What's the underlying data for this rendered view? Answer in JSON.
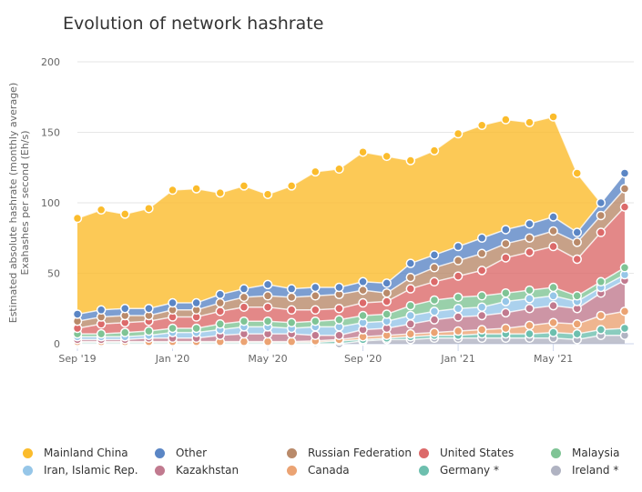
{
  "chart_data": {
    "type": "area",
    "stacked": true,
    "title": "Evolution of network hashrate",
    "ylabel": "Estimated absolute hashrate (monthly average)",
    "ylabel2": "Exahashes per second (Eh/s)",
    "ylim": [
      0,
      200
    ],
    "yticks": [
      0,
      50,
      100,
      150,
      200
    ],
    "grid": true,
    "legend_position": "bottom",
    "x": [
      "2019-09",
      "2019-10",
      "2019-11",
      "2019-12",
      "2020-01",
      "2020-02",
      "2020-03",
      "2020-04",
      "2020-05",
      "2020-06",
      "2020-07",
      "2020-08",
      "2020-09",
      "2020-10",
      "2020-11",
      "2020-12",
      "2021-01",
      "2021-02",
      "2021-03",
      "2021-04",
      "2021-05",
      "2021-06",
      "2021-07",
      "2021-08"
    ],
    "xtick_labels": [
      {
        "label": "Sep '19",
        "index": 0
      },
      {
        "label": "Jan '20",
        "index": 4
      },
      {
        "label": "May '20",
        "index": 8
      },
      {
        "label": "Sep '20",
        "index": 12
      },
      {
        "label": "Jan '21",
        "index": 16
      },
      {
        "label": "May '21",
        "index": 20
      }
    ],
    "series": [
      {
        "name": "Ireland *",
        "color": "#b0b3c2",
        "values": [
          0,
          0,
          0,
          0,
          0,
          0,
          0,
          0,
          0,
          0,
          0,
          0,
          2,
          3,
          3,
          4,
          4,
          4,
          4,
          4,
          4,
          3,
          6,
          6
        ]
      },
      {
        "name": "Germany *",
        "color": "#6dbfae",
        "values": [
          1,
          1,
          1,
          1,
          1,
          1,
          1,
          1,
          1,
          1,
          1,
          2,
          1,
          1,
          2,
          2,
          2,
          3,
          3,
          3,
          4,
          4,
          4,
          5
        ]
      },
      {
        "name": "Canada",
        "color": "#eba373",
        "values": [
          0.5,
          0.5,
          0.5,
          0.5,
          0.5,
          0.5,
          0.5,
          0.5,
          0.5,
          0.5,
          1,
          1,
          2,
          2,
          2,
          2,
          3,
          3,
          4,
          6,
          7,
          7,
          10,
          12
        ]
      },
      {
        "name": "Kazakhstan",
        "color": "#c17a8f",
        "values": [
          1.5,
          1.5,
          1.5,
          2.5,
          2.5,
          2.5,
          4.5,
          5.5,
          5.5,
          5.5,
          4,
          3,
          5,
          5,
          7,
          9,
          10,
          10,
          11,
          12,
          12,
          11,
          16,
          22
        ]
      },
      {
        "name": "Iran, Islamic Rep.",
        "color": "#96c6e8",
        "values": [
          2,
          2,
          2,
          2,
          4,
          4,
          4,
          5,
          5,
          4,
          6,
          6,
          5,
          5,
          6,
          6,
          6,
          6,
          8,
          7,
          7,
          5,
          4,
          4
        ]
      },
      {
        "name": "Malaysia",
        "color": "#7fc495",
        "values": [
          2,
          2,
          3,
          3,
          3,
          3,
          4,
          4,
          4,
          4,
          4,
          5,
          5,
          5,
          7,
          8,
          8,
          8,
          6,
          6,
          6,
          4,
          4,
          5
        ]
      },
      {
        "name": "United States",
        "color": "#dc6a6a",
        "values": [
          4,
          7,
          7,
          7,
          8,
          8,
          9,
          10,
          10,
          9,
          8,
          8,
          9,
          9,
          12,
          13,
          15,
          18,
          25,
          27,
          29,
          26,
          35,
          43
        ]
      },
      {
        "name": "Russian Federation",
        "color": "#b98a6a",
        "values": [
          5,
          5,
          5,
          4,
          5,
          5,
          6,
          7,
          8,
          9,
          10,
          10,
          9,
          6,
          8,
          10,
          11,
          12,
          10,
          10,
          11,
          12,
          12,
          13
        ]
      },
      {
        "name": "Other",
        "color": "#5b86c5",
        "values": [
          5,
          5,
          5,
          5,
          5,
          5,
          6,
          6,
          8,
          6,
          6,
          5,
          6,
          7,
          10,
          9,
          10,
          11,
          10,
          10,
          10,
          7,
          9,
          11
        ]
      },
      {
        "name": "Mainland China",
        "color": "#fbbc2c",
        "values": [
          68,
          71,
          67,
          71,
          80,
          81,
          72,
          73,
          64,
          73,
          82,
          84,
          92,
          90,
          73,
          74,
          80,
          80,
          78,
          72,
          71,
          42,
          0,
          0
        ]
      }
    ],
    "legend_order": [
      "Mainland China",
      "Other",
      "Russian Federation",
      "United States",
      "Malaysia",
      "Iran, Islamic Rep.",
      "Kazakhstan",
      "Canada",
      "Germany *",
      "Ireland *"
    ]
  }
}
